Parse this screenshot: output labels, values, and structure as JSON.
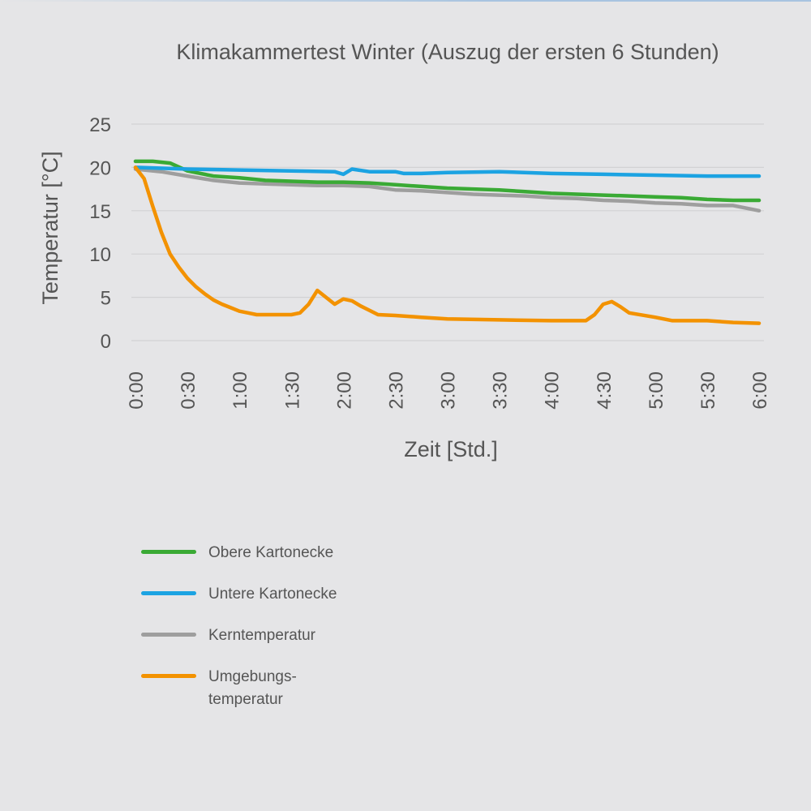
{
  "chart_data": {
    "type": "line",
    "title": "Klimakammertest Winter (Auszug der ersten 6 Stunden)",
    "xlabel": "Zeit [Std.]",
    "ylabel": "Temperatur [°C]",
    "ylim": [
      0,
      25
    ],
    "yticks": [
      0,
      5,
      10,
      15,
      20,
      25
    ],
    "xlim": [
      "0:00",
      "6:00"
    ],
    "categories": [
      "0:00",
      "0:30",
      "1:00",
      "1:30",
      "2:00",
      "2:30",
      "3:00",
      "3:30",
      "4:00",
      "4:30",
      "5:00",
      "5:30",
      "6:00"
    ],
    "grid": "horizontal",
    "legend_position": "bottom-left",
    "series": [
      {
        "name": "Obere Kartonecke",
        "color": "#3aaa35",
        "points": [
          [
            "0:00",
            20.7
          ],
          [
            "0:10",
            20.7
          ],
          [
            "0:20",
            20.5
          ],
          [
            "0:30",
            19.6
          ],
          [
            "0:45",
            19.0
          ],
          [
            "1:00",
            18.8
          ],
          [
            "1:15",
            18.5
          ],
          [
            "1:30",
            18.4
          ],
          [
            "1:45",
            18.3
          ],
          [
            "2:00",
            18.3
          ],
          [
            "2:15",
            18.2
          ],
          [
            "2:30",
            18.0
          ],
          [
            "2:45",
            17.8
          ],
          [
            "3:00",
            17.6
          ],
          [
            "3:15",
            17.5
          ],
          [
            "3:30",
            17.4
          ],
          [
            "3:45",
            17.2
          ],
          [
            "4:00",
            17.0
          ],
          [
            "4:15",
            16.9
          ],
          [
            "4:30",
            16.8
          ],
          [
            "4:45",
            16.7
          ],
          [
            "5:00",
            16.6
          ],
          [
            "5:15",
            16.5
          ],
          [
            "5:30",
            16.3
          ],
          [
            "5:45",
            16.2
          ],
          [
            "6:00",
            16.2
          ]
        ]
      },
      {
        "name": "Untere Kartonecke",
        "color": "#1ca3e2",
        "points": [
          [
            "0:00",
            20.0
          ],
          [
            "0:30",
            19.8
          ],
          [
            "1:00",
            19.7
          ],
          [
            "1:30",
            19.6
          ],
          [
            "1:55",
            19.5
          ],
          [
            "2:00",
            19.2
          ],
          [
            "2:05",
            19.8
          ],
          [
            "2:15",
            19.5
          ],
          [
            "2:30",
            19.5
          ],
          [
            "2:35",
            19.3
          ],
          [
            "2:45",
            19.3
          ],
          [
            "3:00",
            19.4
          ],
          [
            "3:30",
            19.5
          ],
          [
            "4:00",
            19.3
          ],
          [
            "4:30",
            19.2
          ],
          [
            "5:00",
            19.1
          ],
          [
            "5:30",
            19.0
          ],
          [
            "6:00",
            19.0
          ]
        ]
      },
      {
        "name": "Kerntemperatur",
        "color": "#9e9e9e",
        "points": [
          [
            "0:00",
            19.8
          ],
          [
            "0:15",
            19.5
          ],
          [
            "0:30",
            19.0
          ],
          [
            "0:45",
            18.5
          ],
          [
            "1:00",
            18.2
          ],
          [
            "1:15",
            18.1
          ],
          [
            "1:30",
            18.0
          ],
          [
            "1:45",
            17.9
          ],
          [
            "2:00",
            17.9
          ],
          [
            "2:15",
            17.8
          ],
          [
            "2:30",
            17.4
          ],
          [
            "2:45",
            17.3
          ],
          [
            "3:00",
            17.1
          ],
          [
            "3:15",
            16.9
          ],
          [
            "3:30",
            16.8
          ],
          [
            "3:45",
            16.7
          ],
          [
            "4:00",
            16.5
          ],
          [
            "4:15",
            16.4
          ],
          [
            "4:30",
            16.2
          ],
          [
            "4:45",
            16.1
          ],
          [
            "5:00",
            15.9
          ],
          [
            "5:15",
            15.8
          ],
          [
            "5:30",
            15.6
          ],
          [
            "5:45",
            15.6
          ],
          [
            "6:00",
            15.0
          ]
        ]
      },
      {
        "name": "Umgebungs-\ntemperatur",
        "color": "#f39200",
        "points": [
          [
            "0:00",
            20.0
          ],
          [
            "0:05",
            18.7
          ],
          [
            "0:10",
            15.5
          ],
          [
            "0:15",
            12.5
          ],
          [
            "0:20",
            10.0
          ],
          [
            "0:25",
            8.5
          ],
          [
            "0:30",
            7.2
          ],
          [
            "0:35",
            6.2
          ],
          [
            "0:40",
            5.4
          ],
          [
            "0:45",
            4.7
          ],
          [
            "0:50",
            4.2
          ],
          [
            "0:55",
            3.8
          ],
          [
            "1:00",
            3.4
          ],
          [
            "1:05",
            3.2
          ],
          [
            "1:10",
            3.0
          ],
          [
            "1:15",
            3.0
          ],
          [
            "1:20",
            3.0
          ],
          [
            "1:25",
            3.0
          ],
          [
            "1:30",
            3.0
          ],
          [
            "1:35",
            3.2
          ],
          [
            "1:40",
            4.2
          ],
          [
            "1:45",
            5.8
          ],
          [
            "1:50",
            5.0
          ],
          [
            "1:55",
            4.2
          ],
          [
            "2:00",
            4.8
          ],
          [
            "2:05",
            4.6
          ],
          [
            "2:10",
            4.0
          ],
          [
            "2:15",
            3.5
          ],
          [
            "2:20",
            3.0
          ],
          [
            "2:30",
            2.9
          ],
          [
            "2:45",
            2.7
          ],
          [
            "3:00",
            2.5
          ],
          [
            "3:30",
            2.4
          ],
          [
            "4:00",
            2.3
          ],
          [
            "4:20",
            2.3
          ],
          [
            "4:25",
            3.0
          ],
          [
            "4:30",
            4.2
          ],
          [
            "4:35",
            4.5
          ],
          [
            "4:40",
            3.9
          ],
          [
            "4:45",
            3.2
          ],
          [
            "5:00",
            2.7
          ],
          [
            "5:10",
            2.3
          ],
          [
            "5:30",
            2.3
          ],
          [
            "5:45",
            2.1
          ],
          [
            "6:00",
            2.0
          ]
        ]
      }
    ]
  }
}
